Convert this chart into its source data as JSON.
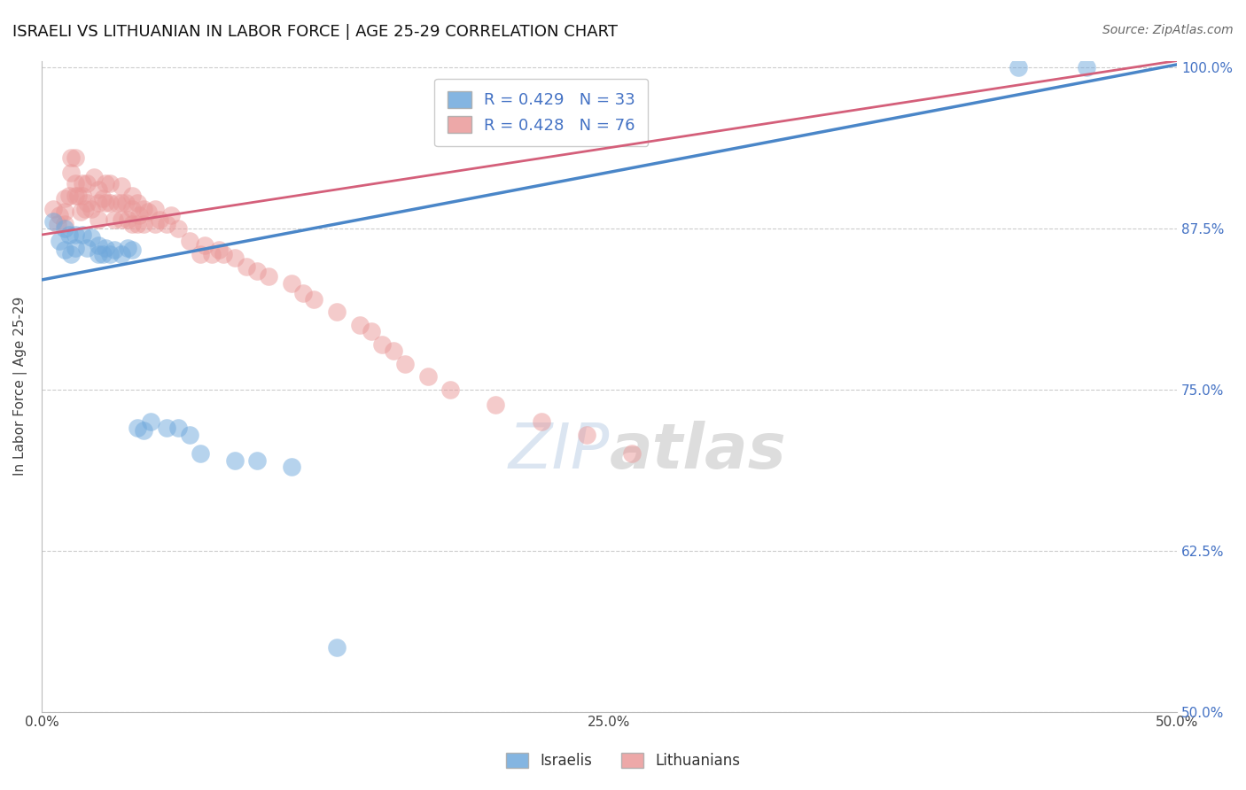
{
  "title": "ISRAELI VS LITHUANIAN IN LABOR FORCE | AGE 25-29 CORRELATION CHART",
  "source": "Source: ZipAtlas.com",
  "ylabel": "In Labor Force | Age 25-29",
  "xlim": [
    0.0,
    0.5
  ],
  "ylim": [
    0.5,
    1.005
  ],
  "ytick_labels": [
    "50.0%",
    "62.5%",
    "75.0%",
    "87.5%",
    "100.0%"
  ],
  "ytick_values": [
    0.5,
    0.625,
    0.75,
    0.875,
    1.0
  ],
  "xtick_values": [
    0.0,
    0.05,
    0.1,
    0.15,
    0.2,
    0.25,
    0.3,
    0.35,
    0.4,
    0.45,
    0.5
  ],
  "xtick_labels": [
    "0.0%",
    "",
    "",
    "",
    "",
    "25.0%",
    "",
    "",
    "",
    "",
    "50.0%"
  ],
  "legend_R_israeli": "R = 0.429",
  "legend_N_israeli": "N = 33",
  "legend_R_lithuanian": "R = 0.428",
  "legend_N_lithuanian": "N = 76",
  "israeli_color": "#6fa8dc",
  "lithuanian_color": "#ea9999",
  "israeli_line_color": "#4a86c8",
  "lithuanian_line_color": "#d45f7a",
  "israeli_x": [
    0.005,
    0.008,
    0.01,
    0.01,
    0.012,
    0.013,
    0.015,
    0.015,
    0.018,
    0.02,
    0.022,
    0.025,
    0.025,
    0.027,
    0.028,
    0.03,
    0.032,
    0.035,
    0.038,
    0.04,
    0.042,
    0.045,
    0.048,
    0.055,
    0.06,
    0.065,
    0.07,
    0.085,
    0.095,
    0.11,
    0.13,
    0.43,
    0.46
  ],
  "israeli_y": [
    0.88,
    0.865,
    0.875,
    0.858,
    0.87,
    0.855,
    0.87,
    0.86,
    0.87,
    0.86,
    0.868,
    0.855,
    0.862,
    0.855,
    0.86,
    0.855,
    0.858,
    0.855,
    0.86,
    0.858,
    0.72,
    0.718,
    0.725,
    0.72,
    0.72,
    0.715,
    0.7,
    0.695,
    0.695,
    0.69,
    0.55,
    1.0,
    1.0
  ],
  "lithuanian_x": [
    0.005,
    0.007,
    0.008,
    0.01,
    0.01,
    0.01,
    0.012,
    0.013,
    0.013,
    0.015,
    0.015,
    0.015,
    0.016,
    0.017,
    0.018,
    0.018,
    0.019,
    0.02,
    0.02,
    0.022,
    0.023,
    0.025,
    0.025,
    0.025,
    0.027,
    0.028,
    0.028,
    0.03,
    0.03,
    0.032,
    0.033,
    0.035,
    0.035,
    0.035,
    0.037,
    0.038,
    0.04,
    0.04,
    0.04,
    0.042,
    0.042,
    0.043,
    0.045,
    0.045,
    0.047,
    0.05,
    0.05,
    0.052,
    0.055,
    0.057,
    0.06,
    0.065,
    0.07,
    0.072,
    0.075,
    0.078,
    0.08,
    0.085,
    0.09,
    0.095,
    0.1,
    0.11,
    0.115,
    0.12,
    0.13,
    0.14,
    0.145,
    0.15,
    0.155,
    0.16,
    0.17,
    0.18,
    0.2,
    0.22,
    0.24,
    0.26
  ],
  "lithuanian_y": [
    0.89,
    0.878,
    0.885,
    0.898,
    0.888,
    0.878,
    0.9,
    0.93,
    0.918,
    0.93,
    0.91,
    0.9,
    0.9,
    0.888,
    0.91,
    0.9,
    0.89,
    0.91,
    0.895,
    0.89,
    0.915,
    0.905,
    0.895,
    0.882,
    0.898,
    0.91,
    0.895,
    0.91,
    0.895,
    0.882,
    0.895,
    0.908,
    0.895,
    0.882,
    0.895,
    0.882,
    0.9,
    0.89,
    0.878,
    0.895,
    0.878,
    0.885,
    0.89,
    0.878,
    0.888,
    0.89,
    0.878,
    0.882,
    0.878,
    0.885,
    0.875,
    0.865,
    0.855,
    0.862,
    0.855,
    0.858,
    0.855,
    0.852,
    0.845,
    0.842,
    0.838,
    0.832,
    0.825,
    0.82,
    0.81,
    0.8,
    0.795,
    0.785,
    0.78,
    0.77,
    0.76,
    0.75,
    0.738,
    0.725,
    0.715,
    0.7
  ]
}
